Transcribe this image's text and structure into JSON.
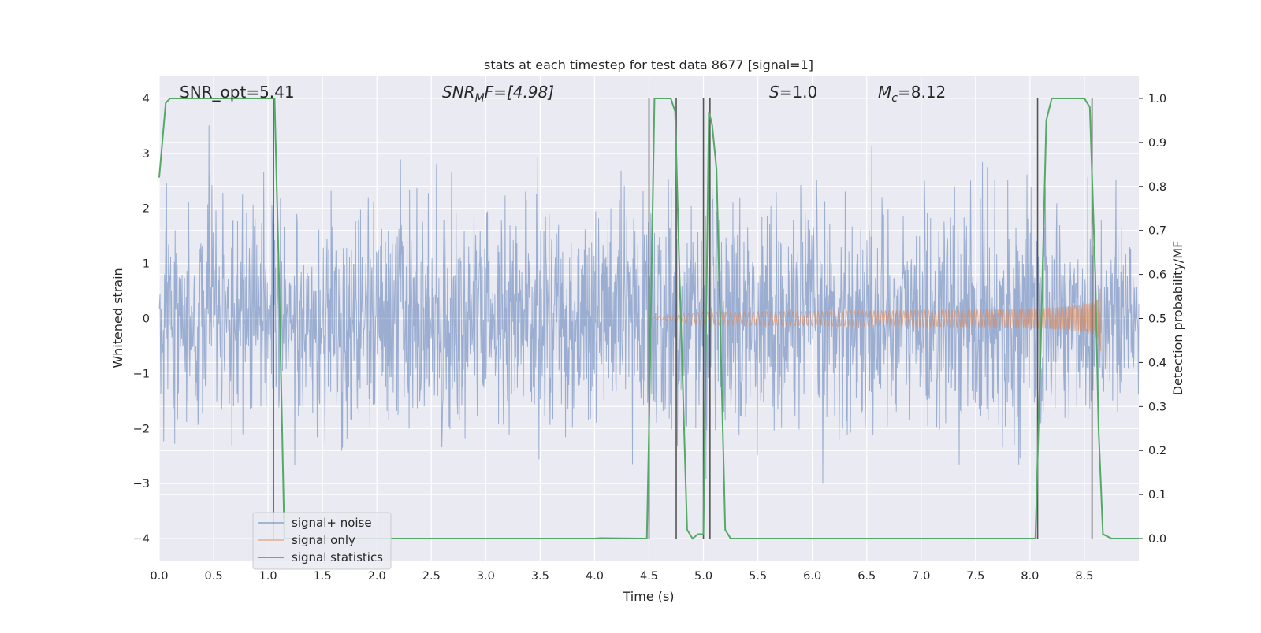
{
  "chart_data": {
    "type": "line",
    "title": "stats at each timestep for test data 8677 [signal=1]",
    "xlabel": "Time (s)",
    "ylabel_left": "Whitened strain",
    "ylabel_right": "Detection probability/MF",
    "xlim": [
      0.0,
      9.0
    ],
    "ylim_left": [
      -4.4,
      4.4
    ],
    "ylim_right": [
      -0.05,
      1.05
    ],
    "xticks": [
      "0.0",
      "0.5",
      "1.0",
      "1.5",
      "2.0",
      "2.5",
      "3.0",
      "3.5",
      "4.0",
      "4.5",
      "5.0",
      "5.5",
      "6.0",
      "6.5",
      "7.0",
      "7.5",
      "8.0",
      "8.5"
    ],
    "yticks_left": [
      "−4",
      "−3",
      "−2",
      "−1",
      "0",
      "1",
      "2",
      "3",
      "4"
    ],
    "yticks_right": [
      "0.0",
      "0.1",
      "0.2",
      "0.3",
      "0.4",
      "0.5",
      "0.6",
      "0.7",
      "0.8",
      "0.9",
      "1.0"
    ],
    "grid": true,
    "legend_placement": "lower-left",
    "annotations": {
      "snr_opt": "SNR_opt=5.41",
      "snr_mf_main": "SNR",
      "snr_mf_sub": "M",
      "snr_mf_rest": "F=[4.98]",
      "s_main": "S",
      "s_rest": "=1.0",
      "mc_main": "M",
      "mc_sub": "c",
      "mc_rest": "=8.12"
    },
    "series": [
      {
        "name": "signal+ noise",
        "color": "#4c72b0",
        "description_values": "white noise approx. N(0,1), t from 0 to 8.99 s",
        "envelope_max": 3.85,
        "envelope_min": -3.7
      },
      {
        "name": "signal only",
        "color": "#dd8452",
        "chirp_start": 4.5,
        "chirp_end": 8.65,
        "chirp_peak_amplitude": 0.7
      },
      {
        "name": "signal statistics",
        "color": "#55a868",
        "x": [
          0.0,
          0.06,
          0.1,
          0.5,
          1.0,
          1.06,
          1.1,
          1.15,
          1.2,
          1.25,
          1.5,
          2.0,
          3.0,
          4.0,
          4.05,
          4.45,
          4.48,
          4.5,
          4.55,
          4.65,
          4.7,
          4.74,
          4.78,
          4.85,
          4.9,
          4.95,
          5.0,
          5.05,
          5.08,
          5.12,
          5.2,
          5.25,
          5.5,
          6.0,
          7.0,
          8.0,
          8.05,
          8.1,
          8.15,
          8.2,
          8.4,
          8.5,
          8.55,
          8.6,
          8.63,
          8.67,
          8.75,
          9.0
        ],
        "y": [
          0.82,
          0.99,
          1.0,
          1.0,
          1.0,
          1.0,
          0.6,
          0.0,
          0.0,
          0.0,
          0.0,
          0.0,
          0.0,
          0.0,
          0.001,
          0.0,
          0.0,
          0.25,
          1.0,
          1.0,
          1.0,
          0.97,
          0.6,
          0.02,
          0.0,
          0.01,
          0.01,
          0.97,
          0.94,
          0.84,
          0.02,
          0.0,
          0.0,
          0.0,
          0.0,
          0.0,
          0.0,
          0.45,
          0.95,
          1.0,
          1.0,
          1.0,
          0.98,
          0.6,
          0.25,
          0.01,
          0.0,
          0.0
        ]
      }
    ],
    "vertical_lines": {
      "color": "#555555",
      "x": [
        1.05,
        4.5,
        4.75,
        5.0,
        5.06,
        8.07,
        8.57
      ]
    }
  }
}
